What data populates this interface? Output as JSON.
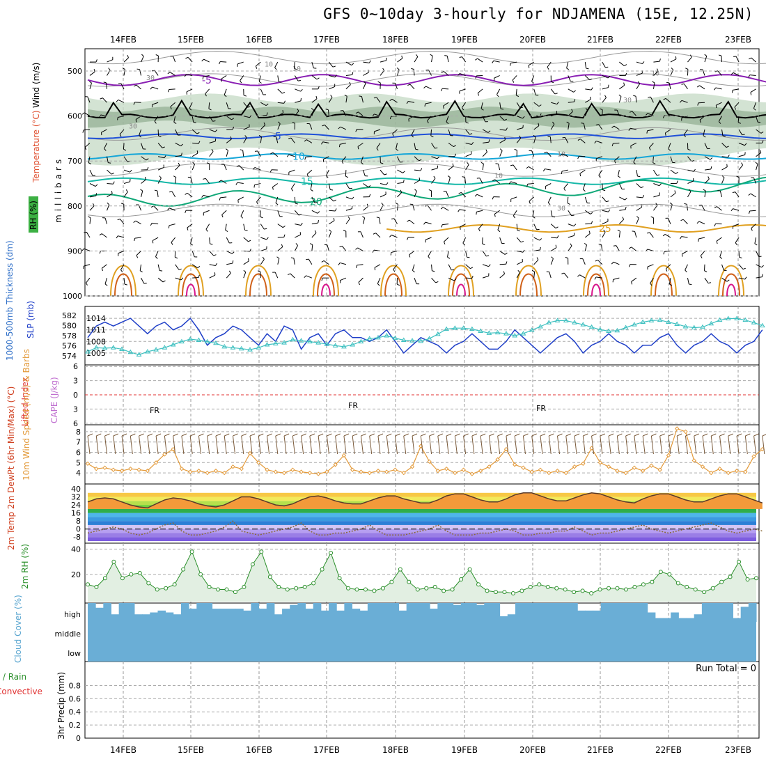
{
  "title": "GFS 0~10day 3-hourly for NDJAMENA (15E, 12.25N)",
  "colors": {
    "rh_fill": "#c8dcc8",
    "rh_dark": "#7d9e7d",
    "freezing": "#000000",
    "temp_m5": "#8a1fb4",
    "temp_5": "#1f50d8",
    "temp_10": "#15a6d8",
    "temp_15": "#16b8a8",
    "temp_20": "#10a878",
    "temp_25": "#e0a020",
    "temp_30": "#d06018",
    "temp_35": "#d8148a",
    "slp": "#1f3fc8",
    "thickness": "#3ec0c0",
    "wind10m": "#e39a3a",
    "rh2m": "#2a8f2a",
    "cloud": "#6aaed6",
    "lifted_zero": "#e03030"
  },
  "chart_data": [
    {
      "panel": "upper-air",
      "type": "heatmap",
      "x_dates": [
        "14FEB",
        "15FEB",
        "16FEB",
        "17FEB",
        "18FEB",
        "19FEB",
        "20FEB",
        "21FEB",
        "22FEB",
        "23FEB"
      ],
      "ylabel": "millibars",
      "y_ticks": [
        500,
        600,
        700,
        800,
        900,
        1000
      ],
      "side_labels": [
        "Wind (m/s)",
        "Temperature (°C)",
        "RH (%)"
      ],
      "freezing_label": "FR",
      "isotherm_labels": [
        {
          "label": "-5",
          "level": 520
        },
        {
          "label": "5",
          "level": 645
        },
        {
          "label": "10",
          "level": 690
        },
        {
          "label": "15",
          "level": 745
        },
        {
          "label": "20",
          "level": 790
        },
        {
          "label": "25",
          "level": 850
        }
      ],
      "rh_labels": [
        "10",
        "30",
        "30",
        "10",
        "30",
        "10",
        "30",
        "10",
        "10"
      ]
    },
    {
      "panel": "slp-thickness",
      "type": "line",
      "ylabel_left": "1000-500mb Thickness (dm)",
      "ylabel_right": "SLP (mb)",
      "left_ticks": [
        574,
        576,
        578,
        580,
        582
      ],
      "right_ticks": [
        1005,
        1008,
        1011,
        1014
      ],
      "series": [
        {
          "name": "SLP (mb)",
          "values": [
            1009,
            1012,
            1013,
            1012,
            1013,
            1014,
            1012,
            1010,
            1012,
            1013,
            1011,
            1012,
            1014,
            1011,
            1007,
            1009,
            1010,
            1012,
            1011,
            1009,
            1007,
            1010,
            1008,
            1012,
            1011,
            1006,
            1009,
            1010,
            1007,
            1010,
            1011,
            1009,
            1009,
            1008,
            1009,
            1011,
            1008,
            1005,
            1007,
            1009,
            1008,
            1007,
            1005,
            1007,
            1008,
            1010,
            1008,
            1006,
            1006,
            1008,
            1011,
            1009,
            1007,
            1005,
            1007,
            1009,
            1010,
            1008,
            1005,
            1007,
            1008,
            1010,
            1008,
            1007,
            1005,
            1007,
            1007,
            1009,
            1010,
            1007,
            1005,
            1007,
            1008,
            1010,
            1008,
            1007,
            1005,
            1007,
            1008,
            1011
          ]
        },
        {
          "name": "1000-500mb Thickness (dm)",
          "values": [
            574.8,
            575.6,
            575.5,
            575.6,
            575.3,
            574.7,
            574.2,
            574.8,
            575.2,
            575.6,
            576.2,
            576.8,
            577.3,
            577.1,
            576.8,
            576.5,
            575.8,
            575.6,
            575.4,
            575.2,
            575.6,
            576.2,
            576.4,
            576.6,
            577.2,
            577.0,
            576.8,
            576.6,
            576.3,
            576.0,
            575.8,
            576.2,
            576.8,
            577.4,
            577.6,
            578.0,
            577.5,
            577.1,
            577.0,
            576.9,
            577.4,
            578.3,
            579.3,
            579.5,
            579.5,
            579.3,
            578.9,
            578.5,
            578.6,
            578.4,
            578.0,
            578.4,
            579.1,
            579.8,
            580.6,
            581.0,
            581.0,
            580.6,
            580.2,
            579.7,
            579.2,
            578.9,
            579.0,
            579.6,
            580.2,
            580.7,
            581.0,
            581.1,
            580.7,
            580.3,
            579.8,
            579.6,
            579.7,
            580.4,
            581.1,
            581.4,
            581.4,
            581.1,
            580.6,
            580.0
          ]
        }
      ]
    },
    {
      "panel": "lifted-cape",
      "type": "line",
      "ylabel_left": "Lifted Index",
      "ylabel_right": "CAPE (J/kg)",
      "left_ticks": [
        6,
        3,
        0,
        -3,
        -6
      ],
      "series": []
    },
    {
      "panel": "wind10m",
      "type": "line",
      "ylabel": "10m Wind Speed (m/s) & Barbs",
      "y_ticks": [
        4,
        5,
        6,
        7,
        8
      ],
      "series": [
        {
          "name": "10m Wind Speed",
          "values": [
            4.9,
            4.4,
            4.5,
            4.3,
            4.2,
            4.4,
            4.3,
            4.2,
            5.0,
            5.8,
            6.3,
            4.4,
            4.1,
            4.2,
            4.0,
            4.2,
            4.0,
            4.6,
            4.4,
            5.9,
            5.0,
            4.3,
            4.1,
            4.0,
            4.3,
            4.1,
            4.0,
            3.9,
            4.1,
            4.8,
            5.7,
            4.3,
            4.1,
            4.0,
            4.2,
            4.1,
            4.3,
            4.0,
            4.6,
            6.6,
            5.1,
            4.2,
            4.4,
            4.0,
            4.3,
            3.9,
            4.2,
            4.6,
            5.3,
            6.3,
            4.8,
            4.5,
            4.1,
            4.3,
            4.0,
            4.2,
            4.0,
            4.6,
            4.9,
            6.4,
            5.0,
            4.6,
            4.2,
            4.0,
            4.5,
            4.2,
            4.7,
            4.3,
            5.7,
            8.3,
            8.0,
            5.2,
            4.6,
            4.0,
            4.4,
            4.0,
            4.2,
            4.1,
            5.6,
            6.3
          ]
        }
      ]
    },
    {
      "panel": "temperature",
      "type": "area",
      "ylabel": "2m Temp 2m DewPt (6hr Min/Max) (°C)",
      "y_ticks": [
        -8,
        0,
        8,
        16,
        24,
        32,
        40
      ],
      "y_tick_labels": [
        "-8",
        "0",
        "8",
        "16",
        "24",
        "32",
        "40"
      ],
      "series": [
        {
          "name": "2m Temp",
          "values": [
            27,
            30,
            31,
            30,
            27,
            24,
            22,
            21,
            25,
            29,
            31,
            30,
            28,
            25,
            23,
            22,
            24,
            28,
            32,
            32,
            30,
            27,
            24,
            23,
            25,
            29,
            32,
            33,
            31,
            28,
            26,
            25,
            25,
            28,
            31,
            33,
            33,
            30,
            28,
            26,
            26,
            29,
            33,
            35,
            35,
            32,
            29,
            27,
            27,
            30,
            34,
            36,
            36,
            33,
            30,
            28,
            28,
            31,
            34,
            36,
            35,
            32,
            29,
            27,
            26,
            30,
            33,
            35,
            35,
            32,
            29,
            27,
            27,
            30,
            33,
            35,
            35,
            32,
            29,
            26
          ]
        },
        {
          "name": "2m DewPt",
          "values": [
            -4,
            -2,
            0,
            2,
            0,
            -4,
            -6,
            -4,
            0,
            4,
            6,
            -2,
            -6,
            -6,
            -4,
            -2,
            2,
            8,
            -2,
            -4,
            -6,
            -4,
            -2,
            0,
            2,
            6,
            -2,
            -6,
            -6,
            -4,
            -4,
            -2,
            0,
            4,
            -2,
            -6,
            -6,
            -6,
            -4,
            -2,
            0,
            4,
            -2,
            -6,
            -6,
            -6,
            -4,
            -4,
            -2,
            0,
            -2,
            -6,
            -6,
            -4,
            -4,
            -2,
            -2,
            2,
            -2,
            -6,
            -4,
            -4,
            -2,
            0,
            2,
            4,
            0,
            -2,
            -4,
            -2,
            0,
            2,
            4,
            6,
            2,
            -2,
            -4,
            -2,
            0,
            -2
          ]
        }
      ]
    },
    {
      "panel": "rh2m",
      "type": "area",
      "ylabel": "2m RH (%)",
      "y_ticks": [
        20,
        40
      ],
      "series": [
        {
          "name": "2m RH",
          "values": [
            12,
            10,
            17,
            30,
            17,
            20,
            21,
            13,
            8,
            9,
            12,
            24,
            38,
            20,
            10,
            8,
            8,
            6,
            10,
            28,
            38,
            18,
            10,
            8,
            9,
            10,
            13,
            24,
            37,
            17,
            9,
            8,
            8,
            7,
            9,
            14,
            24,
            14,
            8,
            9,
            10,
            7,
            8,
            16,
            24,
            12,
            7,
            6,
            6,
            5,
            7,
            10,
            12,
            10,
            9,
            8,
            6,
            7,
            5,
            8,
            9,
            9,
            8,
            10,
            12,
            14,
            22,
            20,
            13,
            10,
            8,
            6,
            9,
            14,
            18,
            30,
            16,
            17
          ]
        }
      ]
    },
    {
      "panel": "cloud",
      "type": "area",
      "ylabel": "Cloud Cover (%)",
      "y_tick_labels": [
        "high",
        "middle",
        "low"
      ],
      "series": [
        {
          "name": "high cloud cover (%)",
          "values": [
            100,
            75,
            100,
            40,
            100,
            100,
            40,
            40,
            50,
            60,
            50,
            40,
            100,
            70,
            100,
            100,
            70,
            70,
            70,
            70,
            60,
            100,
            70,
            100,
            40,
            70,
            90,
            100,
            70,
            100,
            60,
            100,
            60,
            100,
            70,
            60,
            100,
            100,
            100,
            100,
            60,
            100,
            100,
            100,
            70,
            100,
            100,
            90,
            100,
            100,
            90,
            100,
            100,
            30,
            40,
            100,
            100,
            100,
            100,
            100,
            100,
            100,
            100,
            60,
            60,
            60,
            100,
            100,
            100,
            100,
            100,
            100,
            50,
            20,
            20,
            50,
            20,
            20,
            40,
            100,
            100,
            100,
            100,
            20,
            80,
            100
          ]
        },
        {
          "name": "middle cloud cover (%)",
          "values": [
            100
          ]
        },
        {
          "name": "low cloud cover (%)",
          "values": [
            100
          ]
        }
      ]
    },
    {
      "panel": "precip",
      "type": "bar",
      "ylabel": "3hr Precip (mm)",
      "side_labels": [
        "Total / Rain",
        "Convective"
      ],
      "y_ticks": [
        0,
        0.2,
        0.4,
        0.6,
        0.8
      ],
      "run_total_label": "Run Total = 0",
      "series": []
    }
  ]
}
